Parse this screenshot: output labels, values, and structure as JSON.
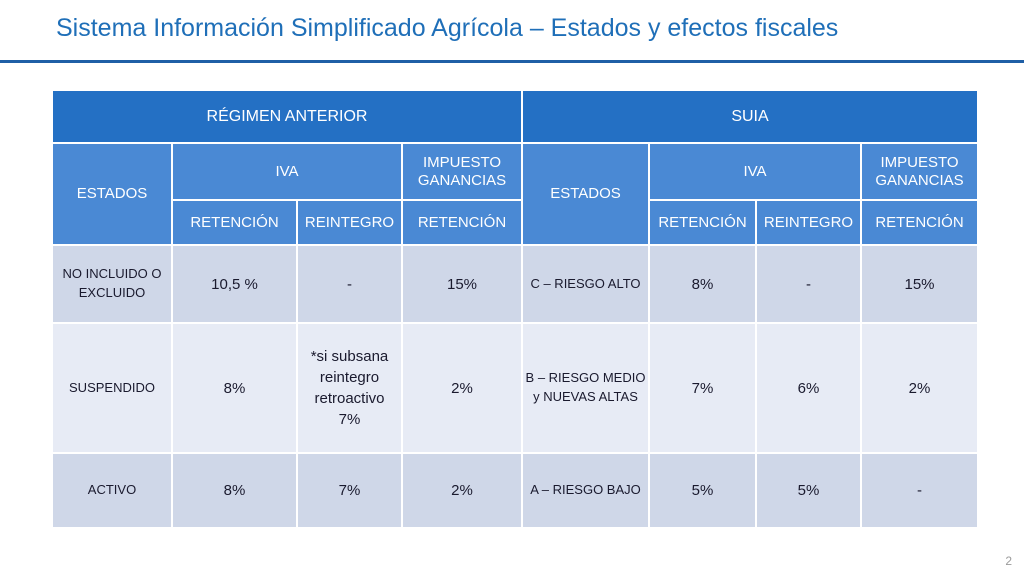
{
  "title": "Sistema Información Simplificado Agrícola  – Estados y efectos fiscales",
  "page_number": "2",
  "table": {
    "group_headers": {
      "left": "RÉGIMEN ANTERIOR",
      "right": "SUIA"
    },
    "sub_headers": {
      "estados": "ESTADOS",
      "iva": "IVA",
      "impuesto_ganancias": "IMPUESTO GANANCIAS",
      "retencion": "RETENCIÓN",
      "reintegro": "REINTEGRO"
    },
    "rows": [
      {
        "prev_estado": "NO INCLUIDO O EXCLUIDO",
        "prev_iva_retencion": "10,5 %",
        "prev_iva_reintegro": "-",
        "prev_ganancias_retencion": "15%",
        "suia_estado": "C – RIESGO ALTO",
        "suia_iva_retencion": "8%",
        "suia_iva_reintegro": "-",
        "suia_ganancias_retencion": "15%"
      },
      {
        "prev_estado": "SUSPENDIDO",
        "prev_iva_retencion": "8%",
        "prev_iva_reintegro": "*si subsana reintegro retroactivo 7%",
        "prev_ganancias_retencion": "2%",
        "suia_estado": "B – RIESGO MEDIO y NUEVAS ALTAS",
        "suia_iva_retencion": "7%",
        "suia_iva_reintegro": "6%",
        "suia_ganancias_retencion": "2%"
      },
      {
        "prev_estado": "ACTIVO",
        "prev_iva_retencion": "8%",
        "prev_iva_reintegro": "7%",
        "prev_ganancias_retencion": "2%",
        "suia_estado": "A – RIESGO BAJO",
        "suia_iva_retencion": "5%",
        "suia_iva_reintegro": "5%",
        "suia_ganancias_retencion": "-"
      }
    ]
  }
}
